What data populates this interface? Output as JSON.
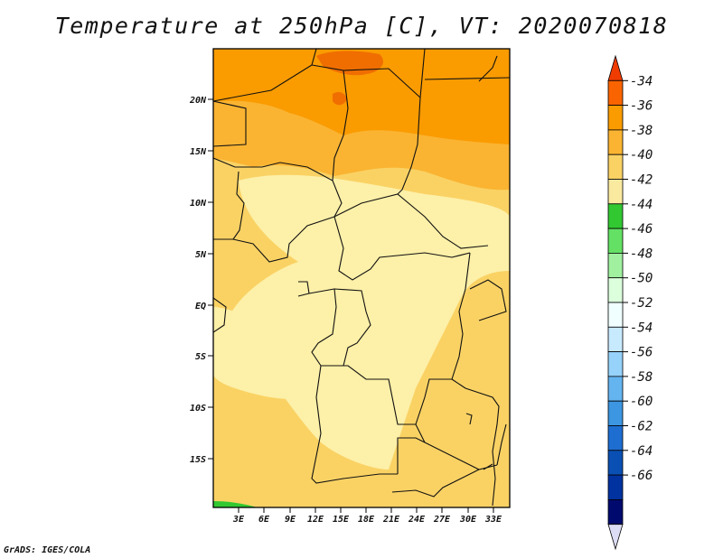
{
  "title": "Temperature at 250hPa [C], VT: 2020070818",
  "credit": "GrADS: IGES/COLA",
  "map": {
    "lat_labels": [
      "20N",
      "15N",
      "10N",
      "5N",
      "EQ",
      "5S",
      "10S",
      "15S"
    ],
    "lon_labels": [
      "3E",
      "6E",
      "9E",
      "12E",
      "15E",
      "18E",
      "21E",
      "24E",
      "27E",
      "30E",
      "33E"
    ]
  },
  "legend": {
    "levels": [
      "-34",
      "-36",
      "-38",
      "-40",
      "-42",
      "-44",
      "-46",
      "-48",
      "-50",
      "-52",
      "-54",
      "-56",
      "-58",
      "-60",
      "-62",
      "-64",
      "-66"
    ],
    "colors": [
      "#f03c00",
      "#fa6400",
      "#fa9b00",
      "#fab432",
      "#fad264",
      "#faeaa0",
      "#32c832",
      "#64e164",
      "#a0f0a0",
      "#dcffdc",
      "#f0ffff",
      "#c8eaff",
      "#96d2fa",
      "#64b4f0",
      "#3c96e1",
      "#1e6ed2",
      "#0a50b4",
      "#0032a0",
      "#000a6e",
      "#dcdcf5"
    ]
  }
}
